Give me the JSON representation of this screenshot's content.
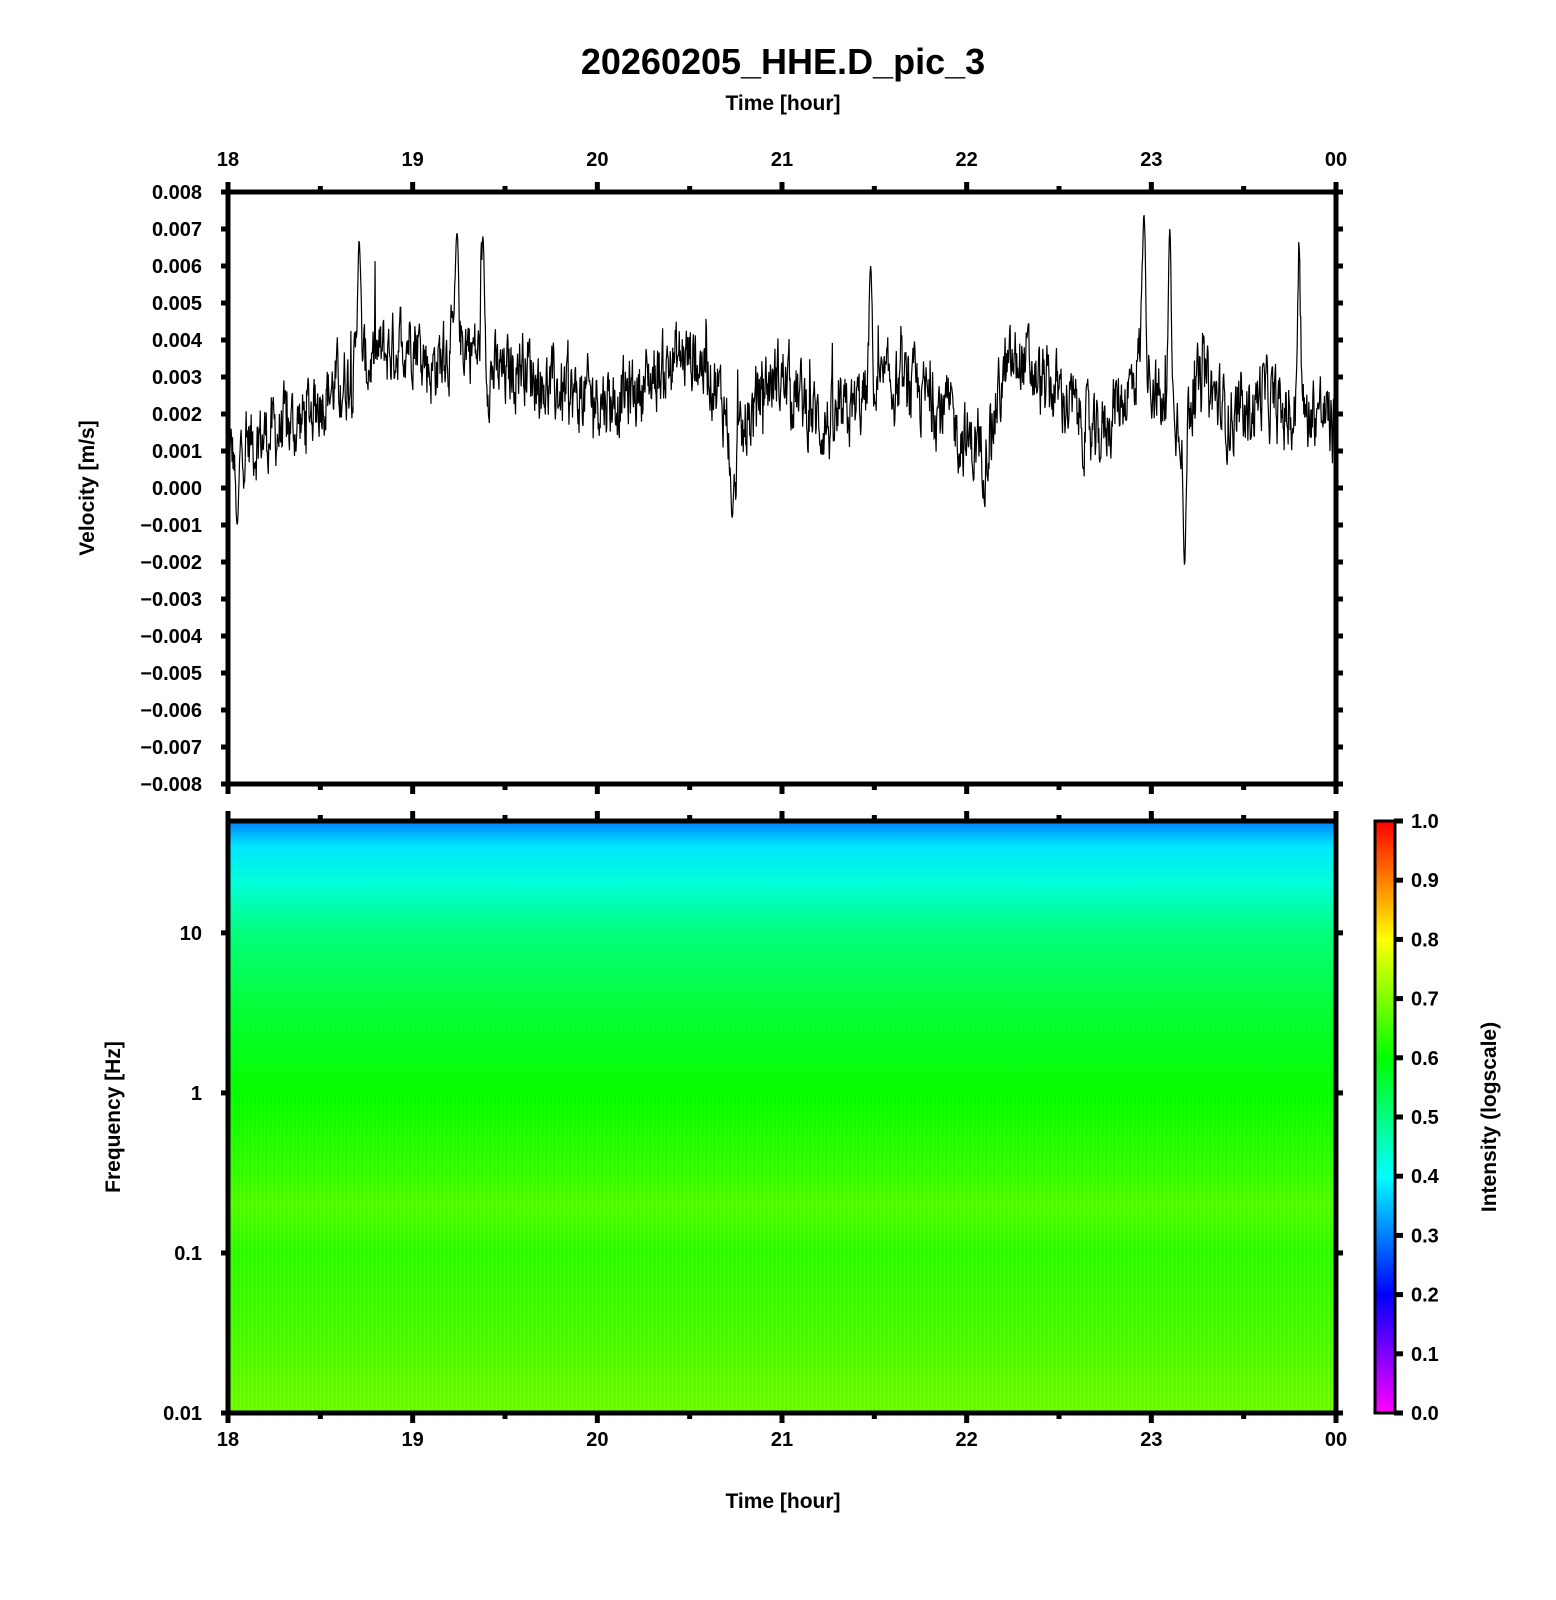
{
  "chart_data": {
    "title": "20260205_HHE.D_pic_3",
    "time_axis_label_top": "Time [hour]",
    "time_axis_label_bottom": "Time [hour]",
    "time_ticks": [
      "18",
      "19",
      "20",
      "21",
      "22",
      "23",
      "00"
    ],
    "waveform": {
      "type": "line",
      "ylabel": "Velocity [m/s]",
      "ylim": [
        -0.008,
        0.008
      ],
      "y_ticks": [
        "0.008",
        "0.007",
        "0.006",
        "0.005",
        "0.004",
        "0.003",
        "0.002",
        "0.001",
        "0.000",
        "−0.001",
        "−0.002",
        "−0.003",
        "−0.004",
        "−0.005",
        "−0.006",
        "−0.007",
        "−0.008"
      ],
      "line_color": "#000000",
      "series": [
        {
          "x_hours": [
            18.0,
            18.1,
            18.25,
            18.4,
            18.5,
            18.6,
            18.7,
            18.8,
            18.9,
            19.0,
            19.1,
            19.2,
            19.3,
            19.4,
            19.5,
            19.6,
            19.7,
            19.8,
            19.9,
            20.0,
            20.1,
            20.2,
            20.3,
            20.4,
            20.5,
            20.6,
            20.7,
            20.75,
            20.8,
            20.9,
            21.0,
            21.1,
            21.2,
            21.3,
            21.4,
            21.5,
            21.6,
            21.7,
            21.8,
            21.9,
            22.0,
            22.1,
            22.2,
            22.3,
            22.4,
            22.5,
            22.6,
            22.7,
            22.8,
            22.9,
            22.95,
            23.0,
            23.1,
            23.15,
            23.2,
            23.3,
            23.4,
            23.5,
            23.6,
            23.7,
            23.8,
            23.9,
            24.0
          ],
          "y_values": [
            0.0008,
            0.0012,
            0.0015,
            0.0018,
            0.0025,
            0.0028,
            0.0032,
            0.0035,
            0.0038,
            0.0042,
            0.0032,
            0.0038,
            0.004,
            0.0032,
            0.003,
            0.0035,
            0.0028,
            0.0026,
            0.0024,
            0.0025,
            0.0024,
            0.0026,
            0.003,
            0.0034,
            0.0036,
            0.0033,
            0.002,
            0.0005,
            0.0015,
            0.0028,
            0.003,
            0.0024,
            0.0018,
            0.0016,
            0.0022,
            0.0025,
            0.0028,
            0.0026,
            0.0024,
            0.002,
            0.0012,
            0.001,
            0.003,
            0.0035,
            0.0028,
            0.0026,
            0.002,
            0.0012,
            0.0022,
            0.0028,
            0.004,
            0.003,
            0.0015,
            0.002,
            0.0025,
            0.0028,
            0.002,
            0.0018,
            0.0026,
            0.002,
            0.0018,
            0.0022,
            0.0015
          ],
          "notable_peaks": [
            {
              "x": 18.71,
              "y": 0.0067
            },
            {
              "x": 19.24,
              "y": 0.0069
            },
            {
              "x": 19.38,
              "y": 0.0068
            },
            {
              "x": 21.48,
              "y": 0.006
            },
            {
              "x": 22.96,
              "y": 0.0074
            },
            {
              "x": 23.1,
              "y": 0.007
            },
            {
              "x": 23.8,
              "y": 0.0065
            }
          ],
          "notable_troughs": [
            {
              "x": 18.05,
              "y": -0.001
            },
            {
              "x": 20.73,
              "y": -0.0008
            },
            {
              "x": 23.18,
              "y": -0.0021
            }
          ]
        }
      ]
    },
    "spectrogram": {
      "type": "heatmap",
      "ylabel": "Frequency [Hz]",
      "yscale": "log",
      "ylim": [
        0.01,
        50
      ],
      "y_ticks": [
        "10",
        "1",
        "0.1",
        "0.01"
      ],
      "y_tick_values": [
        10,
        1,
        0.1,
        0.01
      ],
      "intensity_profile": [
        {
          "freq_hz": 50,
          "intensity": 0.3
        },
        {
          "freq_hz": 35,
          "intensity": 0.38
        },
        {
          "freq_hz": 20,
          "intensity": 0.43
        },
        {
          "freq_hz": 10,
          "intensity": 0.5
        },
        {
          "freq_hz": 3,
          "intensity": 0.56
        },
        {
          "freq_hz": 1,
          "intensity": 0.6
        },
        {
          "freq_hz": 0.3,
          "intensity": 0.64
        },
        {
          "freq_hz": 0.2,
          "intensity": 0.66
        },
        {
          "freq_hz": 0.1,
          "intensity": 0.63
        },
        {
          "freq_hz": 0.03,
          "intensity": 0.65
        },
        {
          "freq_hz": 0.01,
          "intensity": 0.68
        }
      ]
    },
    "colorbar": {
      "label": "Intensity (logscale)",
      "ticks": [
        "1.0",
        "0.9",
        "0.8",
        "0.7",
        "0.6",
        "0.5",
        "0.4",
        "0.3",
        "0.2",
        "0.1",
        "0.0"
      ],
      "colors": [
        "#ff00ff",
        "#0000ff",
        "#00ffff",
        "#00ff00",
        "#ffff00",
        "#ff0000"
      ]
    }
  }
}
